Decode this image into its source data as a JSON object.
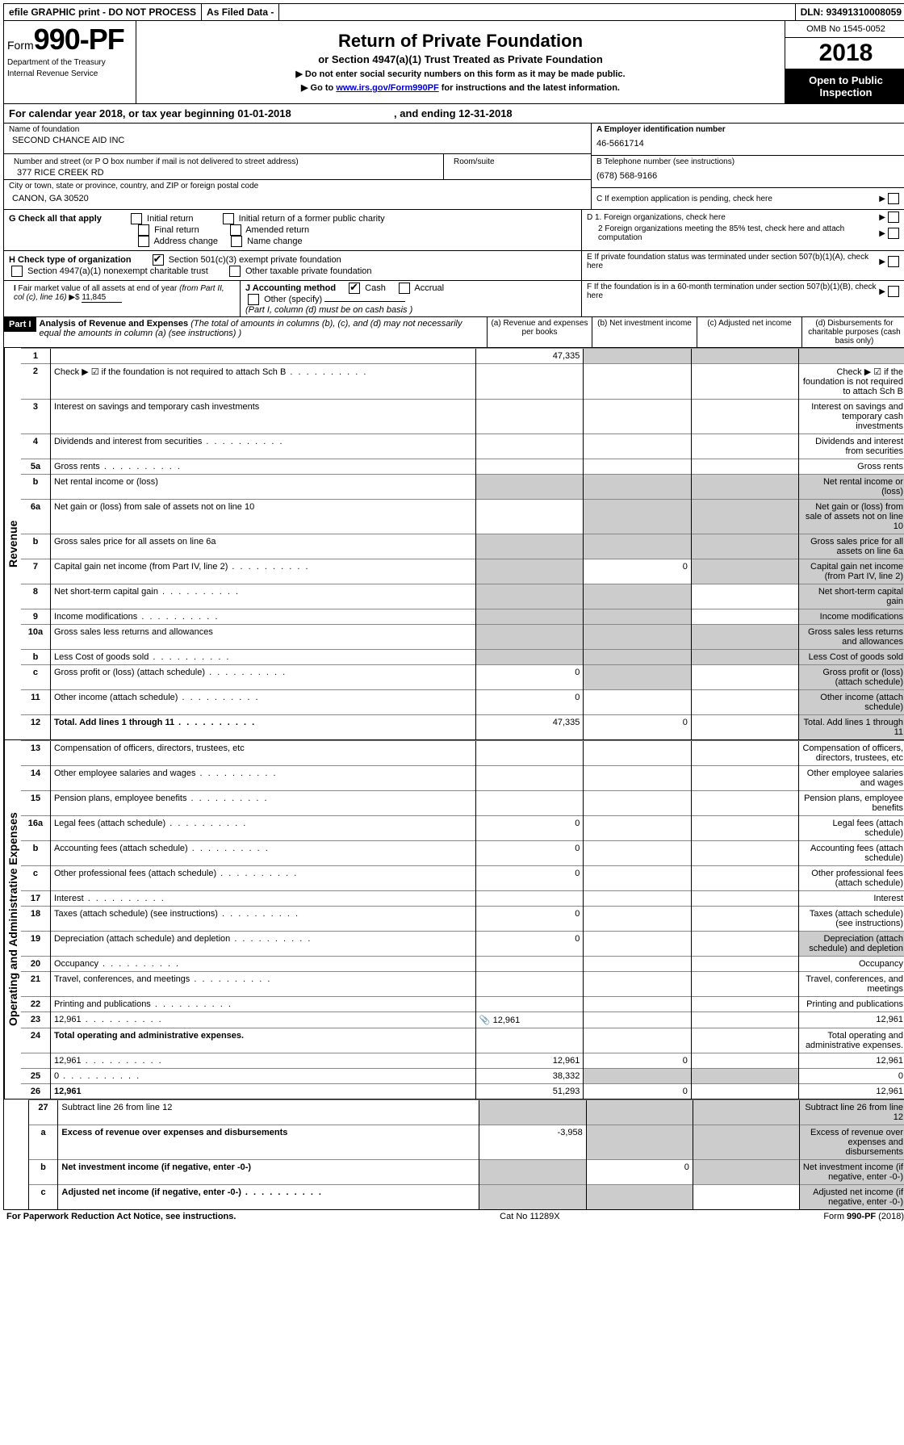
{
  "top": {
    "efile": "efile GRAPHIC print - DO NOT PROCESS",
    "asfiled": "As Filed Data -",
    "dln": "DLN: 93491310008059"
  },
  "header": {
    "form_prefix": "Form",
    "form_num": "990-PF",
    "dept1": "Department of the Treasury",
    "dept2": "Internal Revenue Service",
    "title": "Return of Private Foundation",
    "subtitle": "or Section 4947(a)(1) Trust Treated as Private Foundation",
    "instr1": "▶ Do not enter social security numbers on this form as it may be made public.",
    "instr2_pre": "▶ Go to ",
    "instr2_link": "www.irs.gov/Form990PF",
    "instr2_post": " for instructions and the latest information.",
    "omb": "OMB No 1545-0052",
    "year": "2018",
    "open": "Open to Public Inspection"
  },
  "cal": {
    "text_pre": "For calendar year 2018, or tax year beginning ",
    "begin": "01-01-2018",
    "text_mid": " , and ending ",
    "end": "12-31-2018"
  },
  "foundation": {
    "name_label": "Name of foundation",
    "name": "SECOND CHANCE AID INC",
    "addr_label": "Number and street (or P O  box number if mail is not delivered to street address)",
    "room_label": "Room/suite",
    "addr": "377 RICE CREEK RD",
    "city_label": "City or town, state or province, country, and ZIP or foreign postal code",
    "city": "CANON, GA  30520"
  },
  "right": {
    "a_label": "A Employer identification number",
    "a_val": "46-5661714",
    "b_label": "B Telephone number (see instructions)",
    "b_val": "(678) 568-9166",
    "c_label": "C If exemption application is pending, check here",
    "d1": "D 1. Foreign organizations, check here",
    "d2": "2  Foreign organizations meeting the 85% test, check here and attach computation",
    "e": "E  If private foundation status was terminated under section 507(b)(1)(A), check here",
    "f": "F  If the foundation is in a 60-month termination under section 507(b)(1)(B), check here"
  },
  "g": {
    "label": "G Check all that apply",
    "opts": [
      "Initial return",
      "Initial return of a former public charity",
      "Final return",
      "Amended return",
      "Address change",
      "Name change"
    ]
  },
  "h": {
    "label": "H Check type of organization",
    "opt1": "Section 501(c)(3) exempt private foundation",
    "opt2": "Section 4947(a)(1) nonexempt charitable trust",
    "opt3": "Other taxable private foundation"
  },
  "i": {
    "label": "I Fair market value of all assets at end of year (from Part II, col  (c), line 16) ",
    "val_prefix": "▶$ ",
    "val": "11,845"
  },
  "j": {
    "label": "J Accounting method",
    "cash": "Cash",
    "accrual": "Accrual",
    "other": "Other (specify)",
    "note": "(Part I, column (d) must be on cash basis )"
  },
  "part1": {
    "label": "Part I",
    "title": "Analysis of Revenue and Expenses",
    "note": " (The total of amounts in columns (b), (c), and (d) may not necessarily equal the amounts in column (a) (see instructions) )",
    "col_a": "(a) Revenue and expenses per books",
    "col_b": "(b) Net investment income",
    "col_c": "(c) Adjusted net income",
    "col_d": "(d) Disbursements for charitable purposes (cash basis only)"
  },
  "sections": {
    "revenue": "Revenue",
    "expenses": "Operating and Administrative Expenses"
  },
  "lines": [
    {
      "n": "1",
      "d": "",
      "a": "47,335",
      "b": "",
      "c": "",
      "shade_bcd": true
    },
    {
      "n": "2",
      "d": "Check ▶ ☑ if the foundation is not required to attach Sch  B",
      "nocols": true,
      "dots": true
    },
    {
      "n": "3",
      "d": "Interest on savings and temporary cash investments"
    },
    {
      "n": "4",
      "d": "Dividends and interest from securities",
      "dots": true
    },
    {
      "n": "5a",
      "d": "Gross rents",
      "dots": true
    },
    {
      "n": "b",
      "d": "Net rental income or (loss)",
      "underline_after": true,
      "shade_all": true
    },
    {
      "n": "6a",
      "d": "Net gain or (loss) from sale of assets not on line 10",
      "shade_bcd": true
    },
    {
      "n": "b",
      "d": "Gross sales price for all assets on line 6a",
      "underline_after": true,
      "shade_all": true
    },
    {
      "n": "7",
      "d": "Capital gain net income (from Part IV, line 2)",
      "dots": true,
      "b": "0",
      "shade_a": true,
      "shade_cd": true
    },
    {
      "n": "8",
      "d": "Net short-term capital gain",
      "dots": true,
      "shade_ab": true,
      "shade_d": true
    },
    {
      "n": "9",
      "d": "Income modifications",
      "dots": true,
      "shade_ab": true,
      "shade_d": true
    },
    {
      "n": "10a",
      "d": "Gross sales less returns and allowances",
      "box": true,
      "shade_all": true
    },
    {
      "n": "b",
      "d": "Less  Cost of goods sold",
      "dots": true,
      "box": true,
      "shade_all": true
    },
    {
      "n": "c",
      "d": "Gross profit or (loss) (attach schedule)",
      "dots": true,
      "a": "0",
      "shade_b": true,
      "shade_d": true
    },
    {
      "n": "11",
      "d": "Other income (attach schedule)",
      "dots": true,
      "a": "0",
      "shade_d": true
    },
    {
      "n": "12",
      "d": "Total. Add lines 1 through 11",
      "dots": true,
      "bold": true,
      "a": "47,335",
      "b": "0",
      "shade_d": true
    }
  ],
  "exp_lines": [
    {
      "n": "13",
      "d": "Compensation of officers, directors, trustees, etc"
    },
    {
      "n": "14",
      "d": "Other employee salaries and wages",
      "dots": true
    },
    {
      "n": "15",
      "d": "Pension plans, employee benefits",
      "dots": true
    },
    {
      "n": "16a",
      "d": "Legal fees (attach schedule)",
      "dots": true,
      "a": "0"
    },
    {
      "n": "b",
      "d": "Accounting fees (attach schedule)",
      "dots": true,
      "a": "0"
    },
    {
      "n": "c",
      "d": "Other professional fees (attach schedule)",
      "dots": true,
      "a": "0"
    },
    {
      "n": "17",
      "d": "Interest",
      "dots": true
    },
    {
      "n": "18",
      "d": "Taxes (attach schedule) (see instructions)",
      "dots": true,
      "a": "0"
    },
    {
      "n": "19",
      "d": "Depreciation (attach schedule) and depletion",
      "dots": true,
      "a": "0",
      "shade_d": true
    },
    {
      "n": "20",
      "d": "Occupancy",
      "dots": true
    },
    {
      "n": "21",
      "d": "Travel, conferences, and meetings",
      "dots": true
    },
    {
      "n": "22",
      "d": "Printing and publications",
      "dots": true
    },
    {
      "n": "23",
      "d": "12,961",
      "dots": true,
      "clip": true,
      "a": "12,961"
    },
    {
      "n": "24",
      "d": "Total operating and administrative expenses.",
      "bold": true,
      "nocols": true
    },
    {
      "n": "",
      "d": "12,961",
      "dots": true,
      "a": "12,961",
      "b": "0"
    },
    {
      "n": "25",
      "d": "0",
      "dots": true,
      "a": "38,332",
      "shade_bc": true
    },
    {
      "n": "26",
      "d": "12,961",
      "bold": true,
      "a": "51,293",
      "b": "0"
    }
  ],
  "final_lines": [
    {
      "n": "27",
      "d": "Subtract line 26 from line 12",
      "shade_all": true
    },
    {
      "n": "a",
      "d": "Excess of revenue over expenses and disbursements",
      "bold": true,
      "a": "-3,958",
      "shade_bcd": true
    },
    {
      "n": "b",
      "d": "Net investment income (if negative, enter -0-)",
      "bold": true,
      "b": "0",
      "shade_a": true,
      "shade_cd": true
    },
    {
      "n": "c",
      "d": "Adjusted net income (if negative, enter -0-)",
      "bold": true,
      "dots": true,
      "shade_ab": true,
      "shade_d": true
    }
  ],
  "footer": {
    "left": "For Paperwork Reduction Act Notice, see instructions.",
    "mid": "Cat  No  11289X",
    "right": "Form 990-PF (2018)"
  }
}
